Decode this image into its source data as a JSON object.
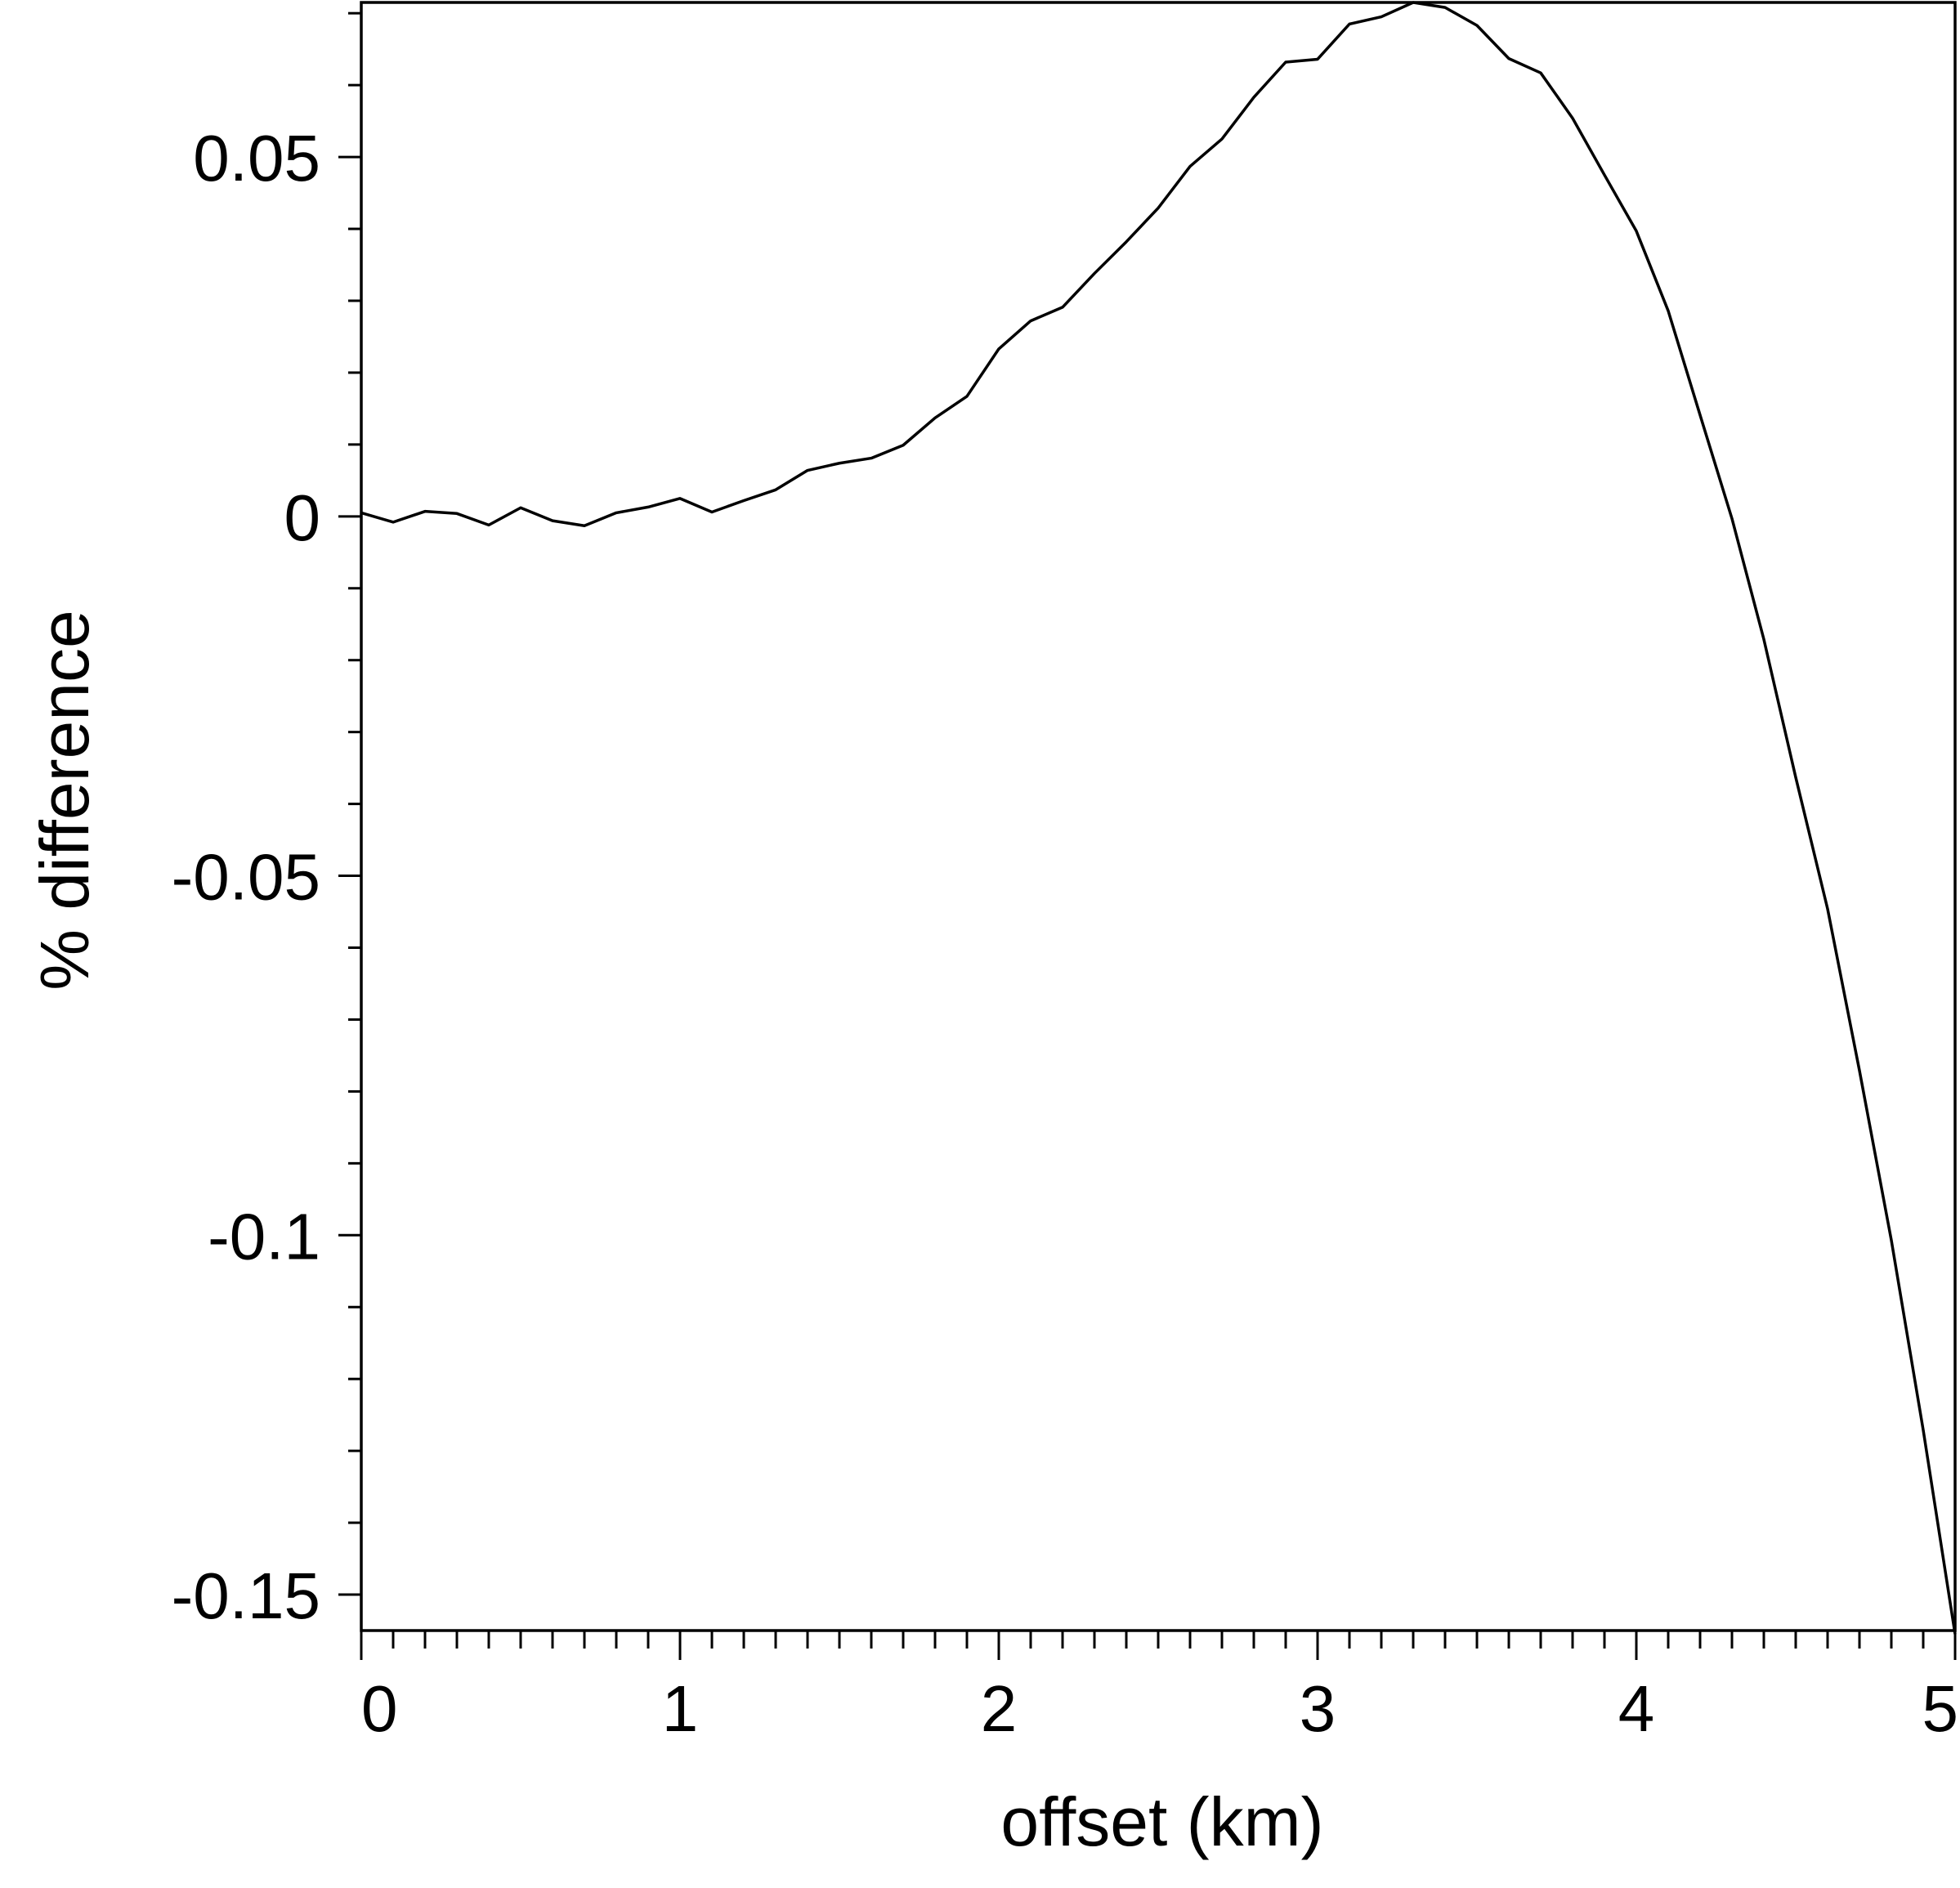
{
  "chart_data": {
    "type": "line",
    "xlabel": "offset (km)",
    "ylabel": "% difference",
    "xlim": [
      0,
      5
    ],
    "ylim": [
      -0.155,
      0.0715
    ],
    "x_ticks": [
      0,
      1,
      2,
      3,
      4,
      5
    ],
    "x_tick_labels": [
      "0",
      "1",
      "2",
      "3",
      "4",
      "5"
    ],
    "x_minor_step": 0.1,
    "y_ticks": [
      0.05,
      0,
      -0.05,
      -0.1,
      -0.15
    ],
    "y_tick_labels": [
      "0.05",
      "0",
      "-0.05",
      "-0.1",
      "-0.15"
    ],
    "y_minor_step": 0.01,
    "grid": false,
    "legend": "none",
    "line_color": "#000000",
    "series": [
      {
        "x": [
          0,
          0.1,
          0.2,
          0.3,
          0.4,
          0.5,
          0.6,
          0.7,
          0.8,
          0.9,
          1.0,
          1.1,
          1.2,
          1.3,
          1.4,
          1.5,
          1.6,
          1.7,
          1.8,
          1.9,
          2.0,
          2.1,
          2.2,
          2.3,
          2.4,
          2.5,
          2.6,
          2.7,
          2.8,
          2.9,
          3.0,
          3.1,
          3.2,
          3.3,
          3.4,
          3.5,
          3.6,
          3.7,
          3.8,
          3.9,
          4.0,
          4.1,
          4.2,
          4.3,
          4.4,
          4.5,
          4.6,
          4.7,
          4.8,
          4.9,
          5.0
        ],
        "y": [
          0.0005,
          -0.0008,
          0.0007,
          0.0004,
          -0.0012,
          0.0012,
          -0.0006,
          -0.0013,
          0.0005,
          0.0013,
          0.0025,
          0.0006,
          0.0022,
          0.0037,
          0.0064,
          0.0074,
          0.0081,
          0.0099,
          0.0137,
          0.0167,
          0.0233,
          0.0272,
          0.0291,
          0.0338,
          0.0382,
          0.0429,
          0.0487,
          0.0525,
          0.0583,
          0.0632,
          0.0636,
          0.0685,
          0.0695,
          0.0715,
          0.0708,
          0.0683,
          0.0637,
          0.0617,
          0.0554,
          0.0475,
          0.0397,
          0.0286,
          0.0141,
          -0.0003,
          -0.0171,
          -0.0363,
          -0.0546,
          -0.0771,
          -0.1007,
          -0.1271,
          -0.1555
        ]
      }
    ]
  }
}
